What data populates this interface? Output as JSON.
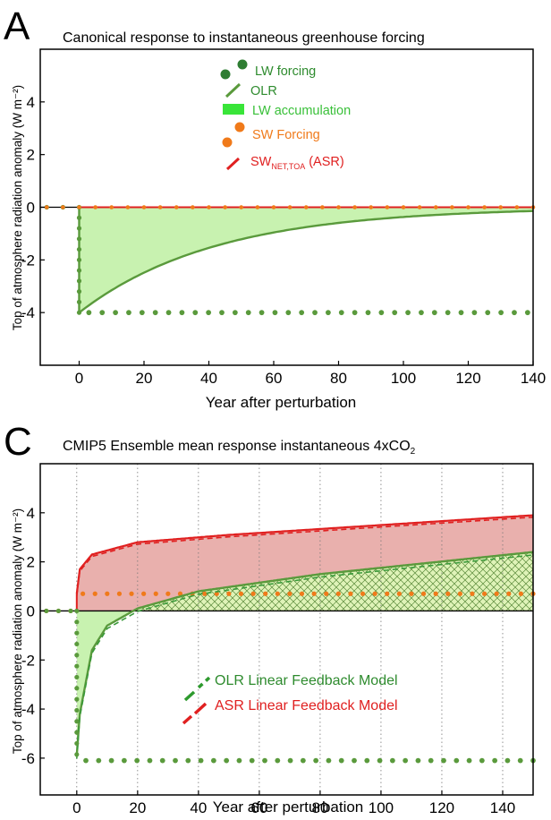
{
  "colors": {
    "lw_green": "#2e7d32",
    "olr_green": "#5a9a3c",
    "lw_fill": "#c8f2b0",
    "lw_legend": "#39e539",
    "sw_orange": "#f07a1a",
    "asr_red": "#e02020",
    "asr_fill": "#e9b0ad",
    "label_green": "#1f9a1f"
  },
  "chart_data": [
    {
      "panel": "A",
      "type": "line",
      "title": "Canonical response to instantaneous greenhouse forcing",
      "xlabel": "Year after perturbation",
      "ylabel": "Top of atmosphere radiation anomaly (W m⁻²)",
      "xlim": [
        -12,
        140
      ],
      "ylim": [
        -6,
        6
      ],
      "xticks": [
        0,
        20,
        40,
        60,
        80,
        100,
        120,
        140
      ],
      "yticks": [
        -4,
        -2,
        0,
        2,
        4
      ],
      "series": [
        {
          "name": "LW forcing",
          "style": "dots",
          "values_before": 0,
          "value_after": -4
        },
        {
          "name": "OLR",
          "style": "line",
          "form": "-4*exp(-t/42)"
        },
        {
          "name": "LW accumulation",
          "style": "fill"
        },
        {
          "name": "SW Forcing",
          "style": "dots",
          "value": 0
        },
        {
          "name": "SWNET,TOA (ASR)",
          "style": "line",
          "value": 0
        }
      ],
      "legend": {
        "lw_forcing": "LW forcing",
        "olr": "OLR",
        "lw_accum": "LW accumulation",
        "sw_forcing": "SW Forcing",
        "asr_main": "SW",
        "asr_sub": "NET,TOA",
        "asr_tail": " (ASR)"
      }
    },
    {
      "panel": "C",
      "type": "line",
      "title": "CMIP5 Ensemble mean response instantaneous 4xCO",
      "title_sub": "2",
      "xlabel": "Year after perturbation",
      "ylabel": "Top of atmosphere radiation anomaly (W m⁻²)",
      "xlim": [
        -12,
        150
      ],
      "ylim": [
        -7.5,
        6
      ],
      "xticks": [
        0,
        20,
        40,
        60,
        80,
        100,
        120,
        140
      ],
      "yticks": [
        -6,
        -4,
        -2,
        0,
        2,
        4
      ],
      "series": [
        {
          "name": "LW forcing",
          "style": "dots",
          "value_after": -6.1
        },
        {
          "name": "SW forcing",
          "style": "dots",
          "value_after": 0.7
        },
        {
          "name": "OLR",
          "style": "line",
          "approx": [
            [
              0,
              -5.9
            ],
            [
              1,
              -4.2
            ],
            [
              5,
              -1.6
            ],
            [
              10,
              -0.6
            ],
            [
              20,
              0.1
            ],
            [
              40,
              0.8
            ],
            [
              80,
              1.5
            ],
            [
              150,
              2.4
            ]
          ]
        },
        {
          "name": "ASR",
          "style": "line",
          "approx": [
            [
              0,
              0.7
            ],
            [
              1,
              1.7
            ],
            [
              5,
              2.3
            ],
            [
              20,
              2.8
            ],
            [
              50,
              3.1
            ],
            [
              100,
              3.5
            ],
            [
              150,
              3.9
            ]
          ]
        },
        {
          "name": "OLR Linear Feedback Model",
          "style": "dashed"
        },
        {
          "name": "ASR Linear Feedback Model",
          "style": "dashed"
        }
      ],
      "legend": {
        "olr_model": "OLR Linear Feedback Model",
        "asr_model": "ASR Linear Feedback Model"
      }
    }
  ]
}
